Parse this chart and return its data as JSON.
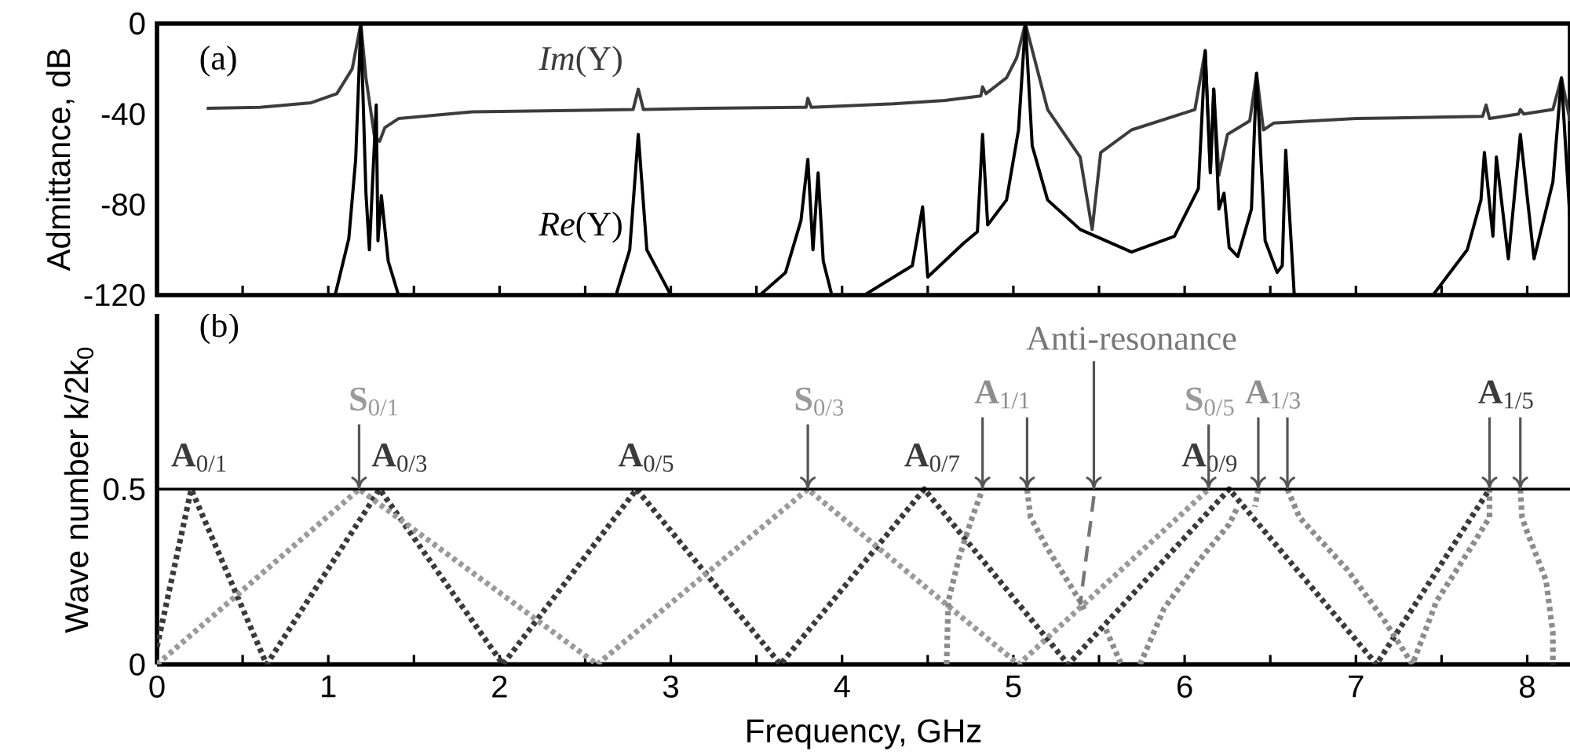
{
  "chart_data": [
    {
      "type": "line",
      "ylabel": "Admittance, dB",
      "xlim": [
        0,
        8.25
      ],
      "ylim": [
        -120,
        0
      ],
      "xticks": [
        0,
        {
          "value": 0.5,
          "label": null
        },
        1,
        {
          "value": 1.5,
          "label": null
        },
        2,
        {
          "value": 2.5,
          "label": null
        },
        3,
        {
          "value": 3.5,
          "label": null
        },
        4,
        {
          "value": 4.5,
          "label": null
        },
        5,
        {
          "value": 5.5,
          "label": null
        },
        6,
        {
          "value": 6.5,
          "label": null
        },
        7,
        {
          "value": 7.5,
          "label": null
        },
        8
      ],
      "yticks": [
        -120,
        -80,
        -40,
        0
      ],
      "tick_labels": "y",
      "annotations": [
        "(a)"
      ],
      "series": [
        {
          "name": "*Im*(Y)",
          "color": "#3c3c3c",
          "line_style": "solid",
          "x": [
            0.29,
            0.6,
            0.9,
            1.05,
            1.14,
            1.19,
            1.22,
            1.27,
            1.3,
            1.33,
            1.41,
            1.84,
            2.78,
            2.81,
            2.84,
            3.2,
            3.79,
            3.8,
            3.82,
            4.3,
            4.6,
            4.81,
            4.82,
            4.84,
            4.96,
            5.02,
            5.07,
            5.2,
            5.39,
            5.46,
            5.51,
            5.69,
            6.06,
            6.12,
            6.15,
            6.17,
            6.2,
            6.25,
            6.38,
            6.42,
            6.46,
            6.52,
            7.0,
            7.74,
            7.76,
            7.78,
            7.95,
            7.96,
            7.98,
            8.15,
            8.2,
            8.25
          ],
          "values": [
            -37.5,
            -37,
            -35,
            -31,
            -20,
            0,
            -24,
            -50,
            -52,
            -46,
            -42,
            -39,
            -38,
            -29,
            -38,
            -37.5,
            -37,
            -33,
            -37,
            -35.5,
            -34,
            -32,
            -28,
            -31,
            -24,
            -15,
            0,
            -38,
            -59,
            -91,
            -57,
            -47,
            -38,
            -12,
            -66,
            -29,
            -67,
            -49,
            -43,
            -22,
            -47,
            -44,
            -42,
            -41,
            -36,
            -42,
            -40,
            -38,
            -40,
            -38,
            -24,
            -43
          ]
        },
        {
          "name": "*Re*(Y)",
          "color": "#000000",
          "line_style": "solid",
          "x": [
            1.04,
            1.12,
            1.16,
            1.19,
            1.22,
            1.24,
            1.28,
            1.29,
            1.31,
            1.35,
            1.41,
            1.5,
            2.68,
            2.76,
            2.81,
            2.86,
            3.0,
            3.2,
            3.52,
            3.67,
            3.76,
            3.8,
            3.83,
            3.86,
            3.89,
            3.94,
            4.0,
            4.13,
            4.41,
            4.47,
            4.5,
            4.71,
            4.79,
            4.82,
            4.85,
            4.96,
            5.03,
            5.07,
            5.11,
            5.2,
            5.39,
            5.69,
            5.94,
            6.08,
            6.12,
            6.15,
            6.17,
            6.2,
            6.23,
            6.26,
            6.31,
            6.39,
            6.42,
            6.47,
            6.54,
            6.57,
            6.59,
            6.64,
            7.0,
            7.45,
            7.65,
            7.73,
            7.75,
            7.79,
            7.8,
            7.82,
            7.89,
            7.96,
            8.04,
            8.15,
            8.2,
            8.25
          ],
          "values": [
            -120,
            -95,
            -60,
            0,
            -75,
            -100,
            -36,
            -96,
            -76,
            -105,
            -120,
            null,
            -120,
            -100,
            -49,
            -100,
            -120,
            null,
            -120,
            -110,
            -87,
            -60,
            -100,
            -66,
            -105,
            -120,
            null,
            -120,
            -107,
            -81,
            -112,
            -97,
            -92,
            -49,
            -89,
            -78,
            -47,
            0,
            -54,
            -78,
            -91,
            -101,
            -94,
            -73,
            -12,
            -66,
            -29,
            -82,
            -75,
            -99,
            -103,
            -82,
            -22,
            -96,
            -110,
            -107,
            -56,
            -120,
            null,
            -120,
            -100,
            -78,
            -57,
            -87,
            -94,
            -59,
            -104,
            -49,
            -104,
            -70,
            -24,
            -87
          ]
        }
      ]
    },
    {
      "type": "line",
      "xlabel": "Frequency, GHz",
      "ylabel": "Wave number k/2k$_{0}$",
      "xlim": [
        0,
        8.25
      ],
      "ylim": [
        0,
        1
      ],
      "xticks": [
        0,
        {
          "value": 0.5,
          "label": null
        },
        1,
        {
          "value": 1.5,
          "label": null
        },
        2,
        {
          "value": 2.5,
          "label": null
        },
        3,
        {
          "value": 3.5,
          "label": null
        },
        4,
        {
          "value": 4.5,
          "label": null
        },
        5,
        {
          "value": 5.5,
          "label": null
        },
        6,
        {
          "value": 6.5,
          "label": null
        },
        7,
        {
          "value": 7.5,
          "label": null
        },
        8
      ],
      "yticks": [
        0,
        0.5
      ],
      "ref_lines": [
        {
          "axis": "y",
          "value": 0.5
        }
      ],
      "annotations": [
        "(b)",
        {
          "text": "**A**$_{0/1}$",
          "x": 0.2,
          "y": 0.5
        },
        {
          "text": "**A**$_{0/3}$",
          "x": 1.3,
          "y": 0.5
        },
        {
          "text": "**A**$_{0/5}$",
          "x": 2.8,
          "y": 0.5
        },
        {
          "text": "**A**$_{0/7}$",
          "x": 4.48,
          "y": 0.5
        },
        {
          "text": "**A**$_{0/9}$",
          "x": 6.26,
          "y": 0.5
        },
        {
          "text": "**S**$_{0/1}$",
          "x": 1.18,
          "y": 0.5
        },
        {
          "text": "**S**$_{0/3}$",
          "x": 3.8,
          "y": 0.5
        },
        {
          "text": "**S**$_{0/5}$",
          "x": 6.14,
          "y": 0.5
        },
        {
          "text": "**A**$_{1/1}$",
          "x": 4.82,
          "y": 0.5
        },
        {
          "text": "**A**$_{1/3}$",
          "x": 6.43,
          "y": 0.5
        },
        {
          "text": "**A**$_{1/5}$",
          "x": 7.78,
          "y": 0.5
        },
        {
          "text": "Anti-resonance",
          "x": 5.47,
          "y": 0.48
        }
      ],
      "series": [
        {
          "color": "#3a3a3a",
          "line_style": "dotted",
          "x": [
            0,
            0.2,
            0.64,
            1.3,
            2.02,
            2.8,
            3.64,
            4.48,
            5.32,
            6.26,
            7.12,
            7.78
          ],
          "values": [
            0.05,
            0.5,
            0,
            0.5,
            0,
            0.5,
            0,
            0.5,
            0,
            0.5,
            0,
            0.5
          ]
        },
        {
          "color": "#9a9a9a",
          "line_style": "dotted",
          "x": [
            0,
            1.18,
            2.57,
            3.8,
            5.03,
            6.14
          ],
          "values": [
            0,
            0.5,
            0,
            0.5,
            0,
            0.5
          ]
        },
        {
          "color": "#8c8c8c",
          "line_style": "dotted",
          "x": [
            4.61,
            4.62,
            4.68,
            4.76,
            4.82,
            4.95,
            5.08,
            5.1,
            5.2,
            5.39,
            5.42,
            5.5,
            5.54,
            5.63,
            5.68,
            5.74,
            5.88,
            6.09,
            6.26,
            6.31,
            6.36,
            6.43,
            6.41,
            6.5,
            6.6,
            6.67,
            6.95,
            7.16,
            7.33,
            7.47,
            7.68,
            7.78,
            7.78,
            7.86,
            7.96,
            7.97,
            7.99,
            8.11,
            8.15,
            8.15
          ],
          "values": [
            0,
            0.18,
            0.3,
            0.42,
            0.5,
            null,
            0.5,
            0.42,
            0.33,
            0.18,
            0.15,
            null,
            0.1,
            0,
            null,
            0,
            0.16,
            0.3,
            0.4,
            0.45,
            null,
            0.5,
            0.45,
            null,
            0.5,
            0.42,
            0.27,
            0.13,
            0,
            0.18,
            0.34,
            0.42,
            0.5,
            null,
            0.5,
            0.42,
            0.39,
            0.24,
            0.09,
            0
          ]
        },
        {
          "color": "#777777",
          "line_style": "dashed",
          "x": [
            5.47,
            5.39
          ],
          "values": [
            0.48,
            0.17
          ]
        }
      ]
    }
  ]
}
